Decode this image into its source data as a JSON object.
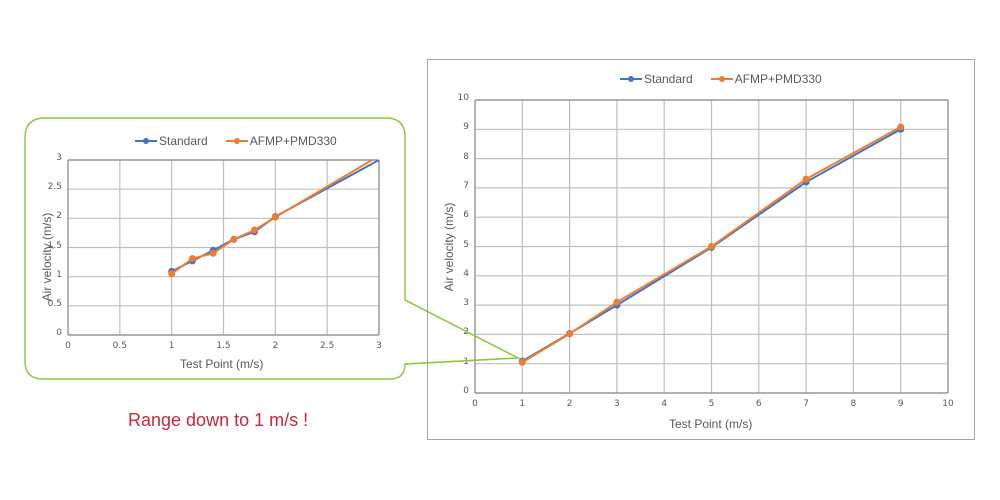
{
  "callout": {
    "text": "Range down to 1 m/s !",
    "color": "#c8283a",
    "border_color": "#8cc63f"
  },
  "colors": {
    "standard": "#4472c4",
    "afmp": "#ed7d31",
    "grid": "#bfbfbf",
    "frame": "#a6a6a6"
  },
  "legend": {
    "standard": "Standard",
    "afmp": "AFMP+PMD330"
  },
  "chart_data": [
    {
      "id": "zoomed-chart",
      "type": "line",
      "title": "",
      "xlabel": "Test Point (m/s)",
      "ylabel": "Air velocity (m/s)",
      "xlim": [
        0,
        3
      ],
      "ylim": [
        0,
        3
      ],
      "x_ticks": [
        "0",
        "0.5",
        "1",
        "1.5",
        "2",
        "2.5",
        "3"
      ],
      "y_ticks": [
        "0",
        "0.5",
        "1",
        "1.5",
        "2",
        "2.5",
        "3"
      ],
      "grid": true,
      "legend_position": "top",
      "series": [
        {
          "name": "Standard",
          "color": "#4472c4",
          "x": [
            1,
            1.2,
            1.4,
            1.6,
            1.8,
            2,
            3
          ],
          "y": [
            1.09,
            1.27,
            1.45,
            1.64,
            1.77,
            2.03,
            3.0
          ]
        },
        {
          "name": "AFMP+PMD330",
          "color": "#ed7d31",
          "x": [
            1,
            1.2,
            1.4,
            1.6,
            1.8,
            2,
            3
          ],
          "y": [
            1.05,
            1.31,
            1.4,
            1.64,
            1.8,
            2.02,
            3.07
          ]
        }
      ]
    },
    {
      "id": "full-chart",
      "type": "line",
      "title": "",
      "xlabel": "Test Point (m/s)",
      "ylabel": "Air velocity (m/s)",
      "xlim": [
        0,
        10
      ],
      "ylim": [
        0,
        10
      ],
      "x_ticks": [
        "0",
        "1",
        "2",
        "3",
        "4",
        "5",
        "6",
        "7",
        "8",
        "9",
        "10"
      ],
      "y_ticks": [
        "0",
        "1",
        "2",
        "3",
        "4",
        "5",
        "6",
        "7",
        "8",
        "9",
        "10"
      ],
      "grid": true,
      "legend_position": "top",
      "series": [
        {
          "name": "Standard",
          "color": "#4472c4",
          "x": [
            1,
            2,
            3,
            5,
            7,
            9
          ],
          "y": [
            1.09,
            2.03,
            3.0,
            4.97,
            7.2,
            9.0
          ]
        },
        {
          "name": "AFMP+PMD330",
          "color": "#ed7d31",
          "x": [
            1,
            2,
            3,
            5,
            7,
            9
          ],
          "y": [
            1.05,
            2.02,
            3.1,
            5.0,
            7.3,
            9.08
          ]
        }
      ]
    }
  ]
}
